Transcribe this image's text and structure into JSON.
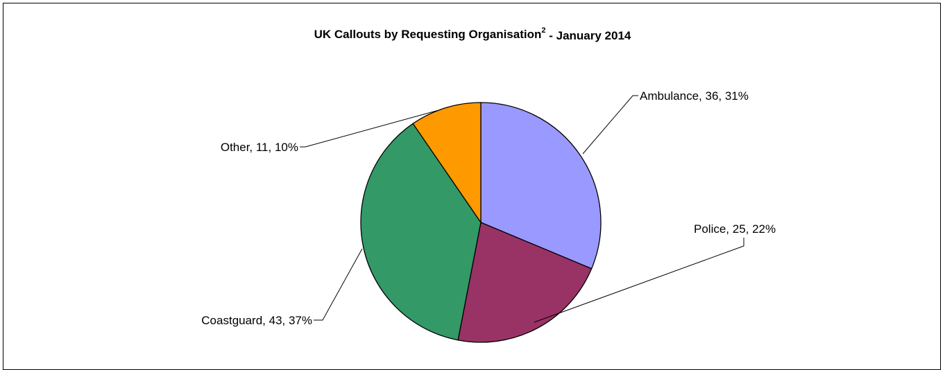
{
  "chart_data": {
    "type": "pie",
    "title": "UK Callouts by Requesting Organisation",
    "title_superscript": "2",
    "title_suffix": "- January 2014",
    "slices": [
      {
        "name": "Ambulance",
        "value": 36,
        "percent": "31%",
        "color": "#9999FF",
        "label": "Ambulance, 36, 31%"
      },
      {
        "name": "Police",
        "value": 25,
        "percent": "22%",
        "color": "#993366",
        "label": "Police, 25, 22%"
      },
      {
        "name": "Coastguard",
        "value": 43,
        "percent": "37%",
        "color": "#339966",
        "label": "Coastguard, 43, 37%"
      },
      {
        "name": "Other",
        "value": 11,
        "percent": "10%",
        "color": "#FF9900",
        "label": "Other, 11, 10%"
      }
    ],
    "legend": "none",
    "labels": "outside with leader lines"
  }
}
